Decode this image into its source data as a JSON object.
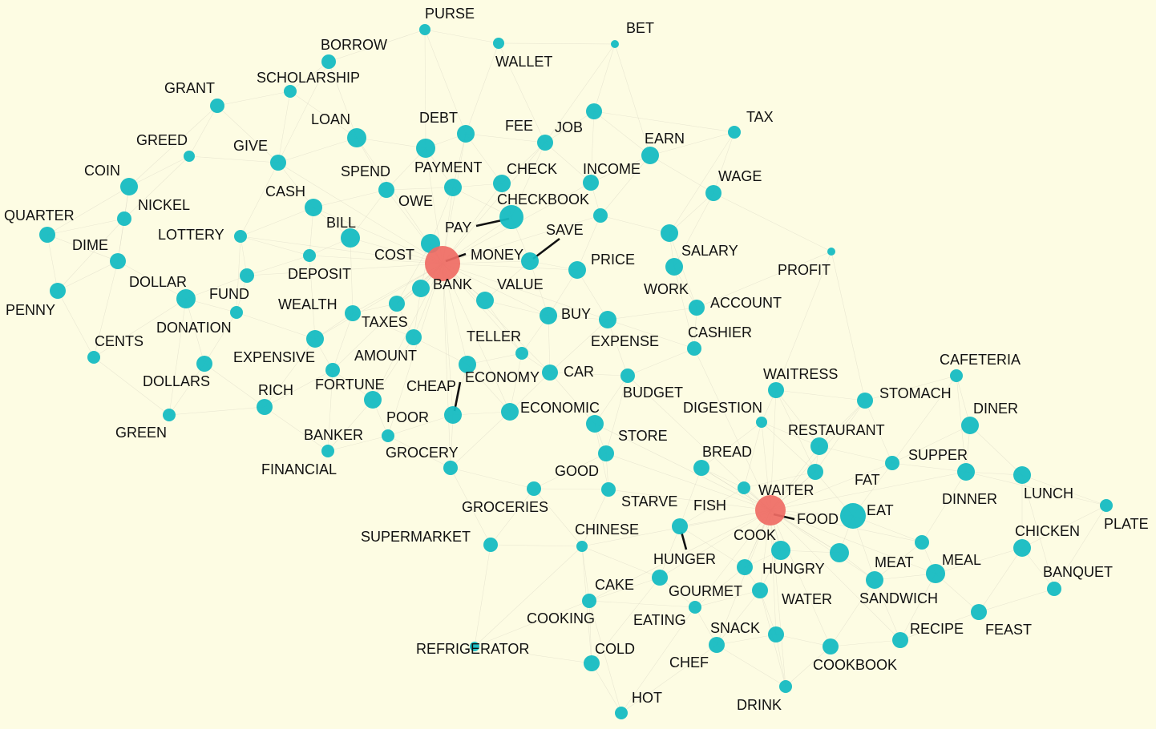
{
  "graph": {
    "title": "",
    "colors": {
      "background": "#fdfce3",
      "node": "#16bcc2",
      "hub": "#ef6b64",
      "highlight_edge": "#111111",
      "faint_edge": "#d9d6c4"
    },
    "hubs": [
      "MONEY",
      "FOOD"
    ],
    "words": [
      "PURSE",
      "BET",
      "WALLET",
      "BORROW",
      "SCHOLARSHIP",
      "GRANT",
      "LOAN",
      "DEBT",
      "FEE",
      "JOB",
      "TAX",
      "EARN",
      "GREED",
      "GIVE",
      "PAYMENT",
      "CHECK",
      "INCOME",
      "COIN",
      "SPEND",
      "WAGE",
      "CASH",
      "OWE",
      "CHECKBOOK",
      "NICKEL",
      "QUARTER",
      "BILL",
      "PAY",
      "LOTTERY",
      "SAVE",
      "DIME",
      "COST",
      "MONEY",
      "SALARY",
      "PRICE",
      "PROFIT",
      "DEPOSIT",
      "DOLLAR",
      "BANK",
      "VALUE",
      "WORK",
      "FUND",
      "PENNY",
      "WEALTH",
      "ACCOUNT",
      "TAXES",
      "BUY",
      "DONATION",
      "CASHIER",
      "TELLER",
      "EXPENSE",
      "CENTS",
      "AMOUNT",
      "EXPENSIVE",
      "ECONOMY",
      "CAR",
      "DOLLARS",
      "CAFETERIA",
      "WAITRESS",
      "RICH",
      "FORTUNE",
      "CHEAP",
      "BUDGET",
      "STOMACH",
      "POOR",
      "ECONOMIC",
      "DIGESTION",
      "DINER",
      "GREEN",
      "BANKER",
      "STORE",
      "RESTAURANT",
      "GROCERY",
      "BREAD",
      "SUPPER",
      "FINANCIAL",
      "GOOD",
      "FAT",
      "WAITER",
      "LUNCH",
      "STARVE",
      "FISH",
      "DINNER",
      "GROCERIES",
      "EAT",
      "FOOD",
      "PLATE",
      "CHINESE",
      "COOK",
      "CHICKEN",
      "SUPERMARKET",
      "HUNGER",
      "HUNGRY",
      "MEAT",
      "MEAL",
      "BANQUET",
      "CAKE",
      "GOURMET",
      "WATER",
      "SANDWICH",
      "COOKING",
      "EATING",
      "SNACK",
      "RECIPE",
      "FEAST",
      "REFRIGERATOR",
      "COLD",
      "CHEF",
      "COOKBOOK",
      "HOT",
      "DRINK"
    ],
    "highlighted_pairs": [
      [
        "MONEY",
        "BANK"
      ],
      [
        "PAY",
        "CHECKBOOK"
      ],
      [
        "SAVE",
        "VALUE"
      ],
      [
        "CHEAP",
        "POOR"
      ],
      [
        "FOOD",
        "WAITER"
      ],
      [
        "FISH",
        "HUNGER"
      ]
    ]
  }
}
